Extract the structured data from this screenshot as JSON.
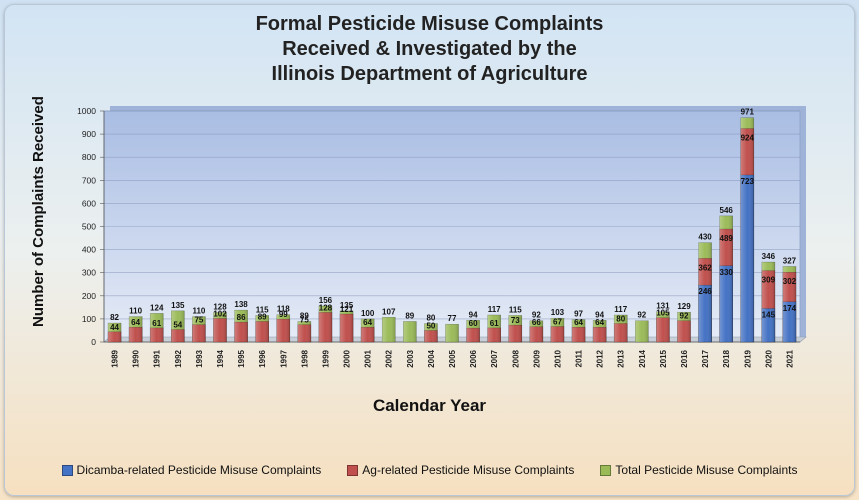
{
  "title_lines": [
    "Formal Pesticide Misuse Complaints",
    "Received & Investigated by the",
    "Illinois Department of Agriculture"
  ],
  "colors": {
    "dicamba": "#4472c4",
    "ag": "#c0504d",
    "total": "#9bbb59",
    "plot_top": "#a9bde3",
    "plot_bottom": "#e6ecf7"
  },
  "legend": [
    {
      "label": "Dicamba-related Pesticide Misuse Complaints",
      "color": "#4472c4"
    },
    {
      "label": "Ag-related Pesticide Misuse Complaints",
      "color": "#c0504d"
    },
    {
      "label": "Total Pesticide Misuse Complaints",
      "color": "#9bbb59"
    }
  ],
  "chart_data": {
    "type": "bar",
    "title": "Formal Pesticide Misuse Complaints Received & Investigated by the Illinois Department of Agriculture",
    "xlabel": "Calendar Year",
    "ylabel": "Number of Complaints Received",
    "ylim": [
      0,
      1000
    ],
    "yticks": [
      0,
      100,
      200,
      300,
      400,
      500,
      600,
      700,
      800,
      900,
      1000
    ],
    "grid": true,
    "legend_position": "bottom",
    "categories": [
      "1989",
      "1990",
      "1991",
      "1992",
      "1993",
      "1994",
      "1995",
      "1996",
      "1997",
      "1998",
      "1999",
      "2000",
      "2001",
      "2002",
      "2003",
      "2004",
      "2005",
      "2006",
      "2007",
      "2008",
      "2009",
      "2010",
      "2011",
      "2012",
      "2013",
      "2014",
      "2015",
      "2016",
      "2017",
      "2018",
      "2019",
      "2020",
      "2021"
    ],
    "series": [
      {
        "name": "Total Pesticide Misuse Complaints",
        "values": [
          82,
          110,
          124,
          135,
          110,
          128,
          138,
          115,
          118,
          89,
          156,
          135,
          100,
          107,
          89,
          80,
          77,
          94,
          117,
          115,
          92,
          103,
          97,
          94,
          117,
          92,
          131,
          129,
          430,
          546,
          971,
          346,
          327
        ],
        "labels": [
          "82",
          "110",
          "124",
          "135",
          "110",
          "128",
          "138",
          "115",
          "118",
          "89",
          "156",
          "135",
          "100",
          "107",
          "89",
          "80",
          "77",
          "94",
          "117",
          "115",
          "92",
          "103",
          "97",
          "94",
          "117",
          "92",
          "131",
          "129",
          "430",
          "546",
          "971",
          "346",
          "327"
        ]
      },
      {
        "name": "Ag-related Pesticide Misuse Complaints",
        "values": [
          44,
          64,
          61,
          54,
          75,
          102,
          86,
          89,
          99,
          75,
          128,
          121,
          64,
          null,
          null,
          50,
          null,
          60,
          61,
          73,
          66,
          67,
          64,
          64,
          80,
          null,
          105,
          92,
          362,
          489,
          924,
          309,
          302
        ],
        "labels": [
          "44",
          "64",
          "61",
          "54",
          "75",
          "102",
          "86",
          "89",
          "99",
          "75",
          "128",
          "121",
          "64",
          "",
          "",
          "50",
          "",
          "60",
          "61",
          "73",
          "66",
          "67",
          "64",
          "64",
          "80",
          "",
          "105",
          "92",
          "362",
          "489",
          "924",
          "309",
          "302"
        ]
      },
      {
        "name": "Dicamba-related Pesticide Misuse Complaints",
        "values": [
          null,
          null,
          null,
          null,
          null,
          null,
          null,
          null,
          null,
          null,
          null,
          null,
          null,
          null,
          null,
          null,
          null,
          null,
          null,
          null,
          null,
          null,
          null,
          null,
          null,
          null,
          null,
          null,
          246,
          330,
          723,
          145,
          174
        ],
        "labels": [
          "",
          "",
          "",
          "",
          "",
          "",
          "",
          "",
          "",
          "",
          "",
          "",
          "",
          "",
          "",
          "",
          "",
          "",
          "",
          "",
          "",
          "",
          "",
          "",
          "",
          "",
          "",
          "",
          "246",
          "330",
          "723",
          "145",
          "174"
        ]
      }
    ]
  }
}
